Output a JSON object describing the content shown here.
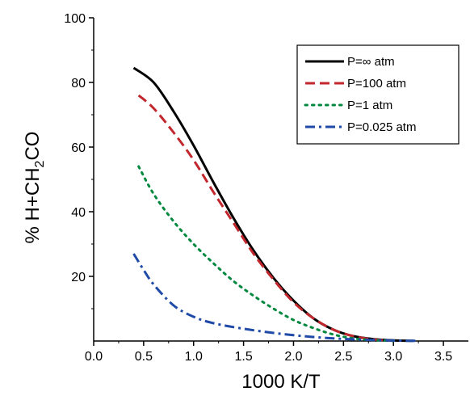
{
  "chart_data": {
    "type": "line",
    "xlabel": "1000 K/T",
    "ylabel": {
      "prefix": "% H+CH",
      "sub": "2",
      "suffix": "CO"
    },
    "xlim": [
      0.0,
      3.75
    ],
    "ylim": [
      0,
      100
    ],
    "x_ticks": [
      "0.0",
      "0.5",
      "1.0",
      "1.5",
      "2.0",
      "2.5",
      "3.0",
      "3.5"
    ],
    "x_tick_values": [
      0.0,
      0.5,
      1.0,
      1.5,
      2.0,
      2.5,
      3.0,
      3.5
    ],
    "y_ticks": [
      "20",
      "40",
      "60",
      "80",
      "100"
    ],
    "y_tick_values": [
      20,
      40,
      60,
      80,
      100
    ],
    "grid": false,
    "legend_position": "top-right",
    "series": [
      {
        "name": "P=∞ atm",
        "color": "#000000",
        "style": "solid",
        "x": [
          0.4,
          0.6,
          0.8,
          1.0,
          1.2,
          1.4,
          1.6,
          1.8,
          2.0,
          2.2,
          2.4,
          2.6,
          2.8,
          3.0,
          3.2
        ],
        "y": [
          84.5,
          80,
          71,
          60.5,
          49,
          38,
          28,
          19.5,
          12.5,
          7,
          3.5,
          1.5,
          0.6,
          0.2,
          0.05
        ]
      },
      {
        "name": "P=100 atm",
        "color": "#c1272d",
        "style": "dashed",
        "x": [
          0.45,
          0.6,
          0.8,
          1.0,
          1.2,
          1.4,
          1.6,
          1.8,
          2.0,
          2.2,
          2.4,
          2.6,
          2.8,
          3.0
        ],
        "y": [
          76,
          72,
          64.5,
          56,
          46,
          36.5,
          27,
          19,
          12,
          7,
          3.5,
          1.5,
          0.5,
          0.1
        ]
      },
      {
        "name": "P=1 atm",
        "color": "#00883e",
        "style": "dotted",
        "x": [
          0.45,
          0.6,
          0.8,
          1.0,
          1.2,
          1.4,
          1.6,
          1.8,
          2.0,
          2.2,
          2.4,
          2.6,
          2.8,
          3.0
        ],
        "y": [
          54,
          45.5,
          37,
          30,
          24,
          18.5,
          14,
          10,
          6.5,
          4,
          2,
          0.8,
          0.3,
          0.05
        ]
      },
      {
        "name": "P=0.025 atm",
        "color": "#1f4aa8",
        "style": "dashdot",
        "x": [
          0.4,
          0.5,
          0.6,
          0.8,
          1.0,
          1.2,
          1.5,
          1.8,
          2.1,
          2.4,
          2.7,
          3.0,
          3.25
        ],
        "y": [
          27,
          22,
          17.5,
          11,
          7.5,
          5.5,
          3.8,
          2.5,
          1.5,
          0.8,
          0.4,
          0.15,
          0.05
        ]
      }
    ]
  }
}
